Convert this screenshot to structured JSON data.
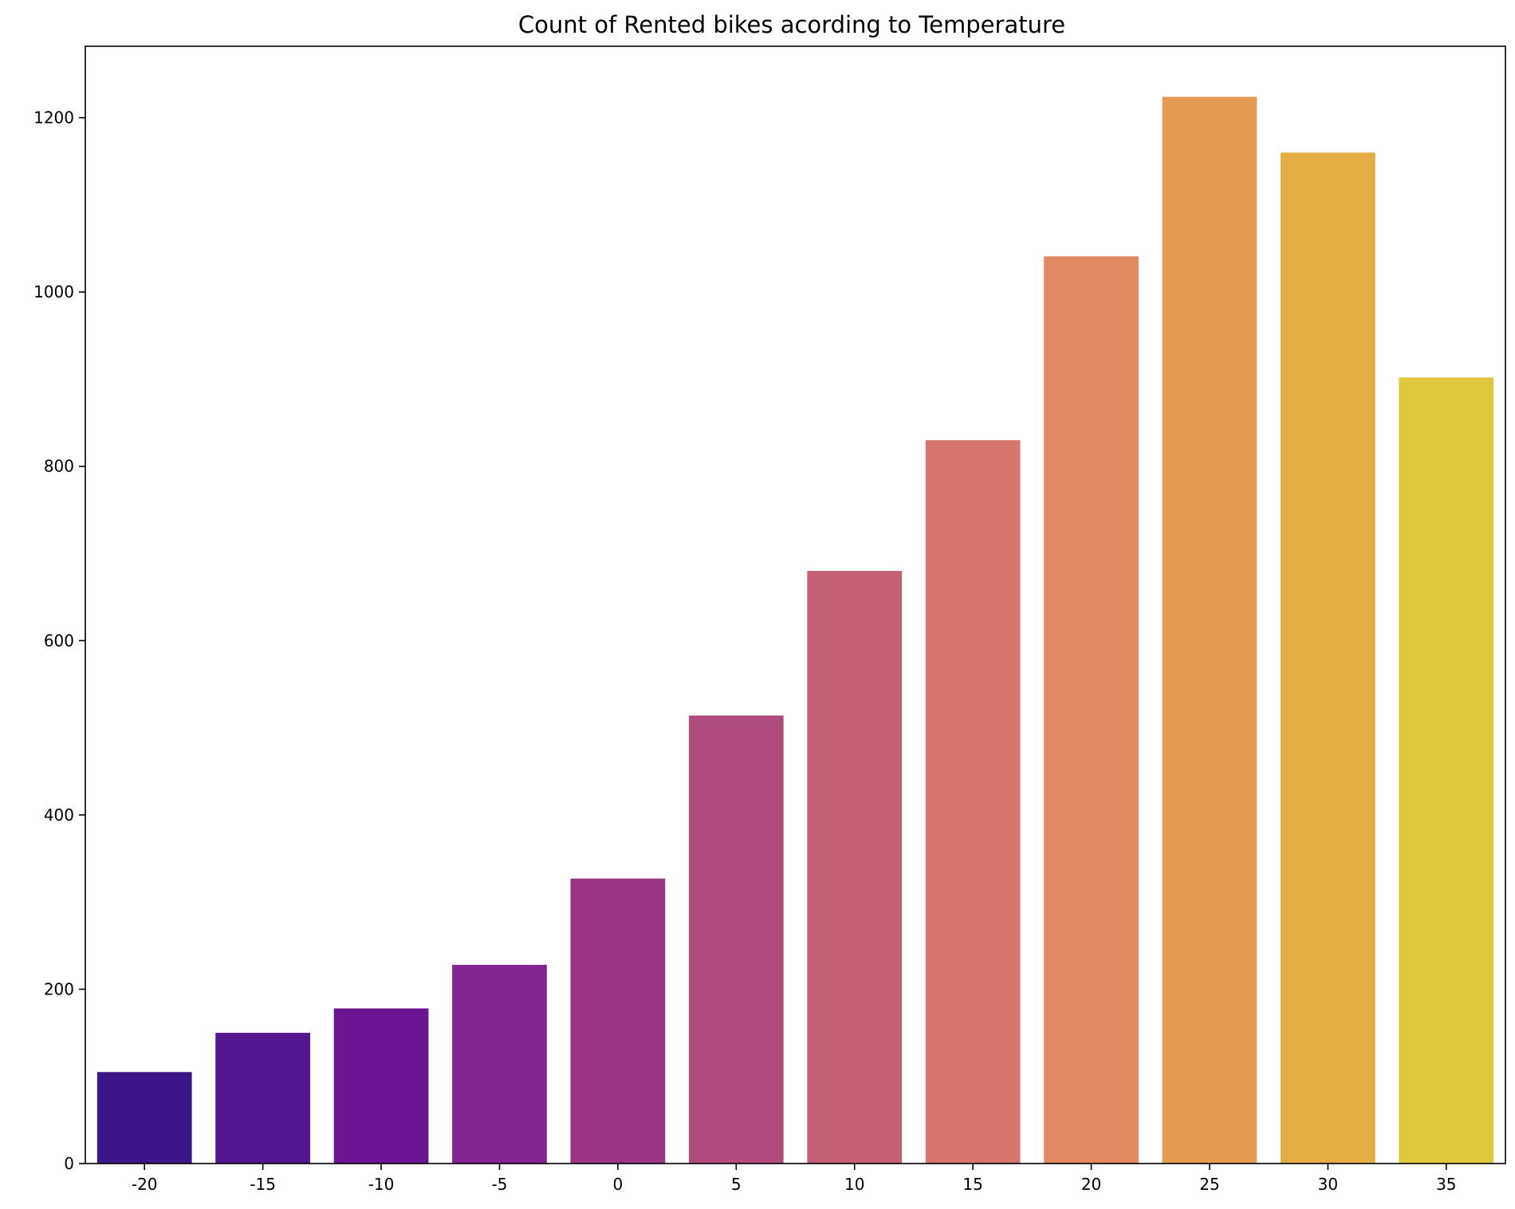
{
  "chart_data": {
    "type": "bar",
    "title": "Count of Rented bikes acording to Temperature",
    "xlabel": "",
    "ylabel": "",
    "categories": [
      "-20",
      "-15",
      "-10",
      "-5",
      "0",
      "5",
      "10",
      "15",
      "20",
      "25",
      "30",
      "35"
    ],
    "values": [
      105,
      150,
      178,
      228,
      327,
      514,
      680,
      830,
      1041,
      1224,
      1160,
      902
    ],
    "colors": [
      "#3d1688",
      "#54168f",
      "#6c1592",
      "#842392",
      "#9c3486",
      "#b04b7d",
      "#c46076",
      "#d5776d",
      "#df8a61",
      "#e39a52",
      "#e4ae45",
      "#dfc83c"
    ],
    "ylim": [
      0,
      1282
    ],
    "yticks": [
      0,
      200,
      400,
      600,
      800,
      1000,
      1200
    ],
    "grid": false,
    "legend": "none"
  }
}
